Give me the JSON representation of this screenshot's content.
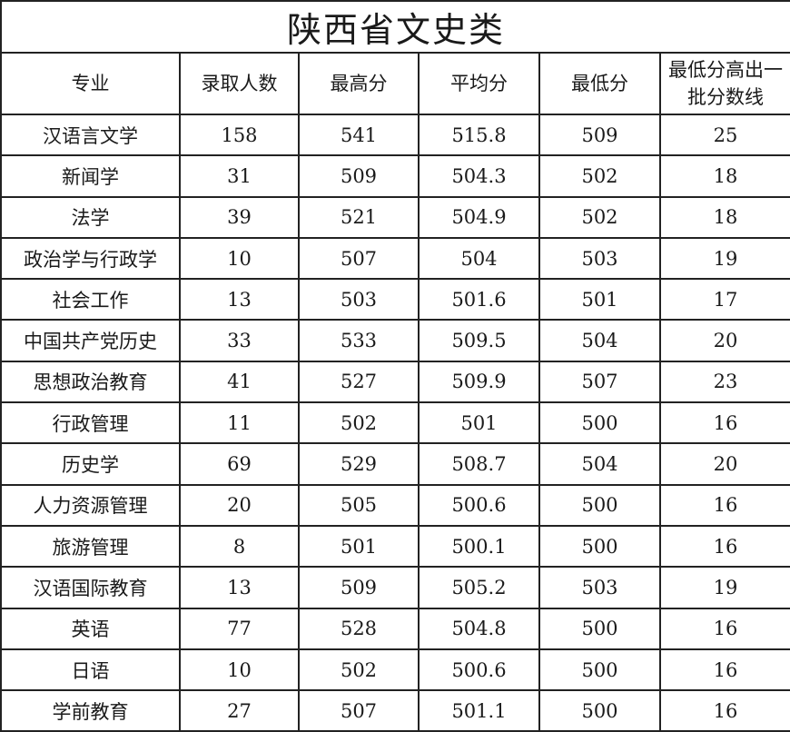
{
  "title": "陕西省文史类",
  "headers": [
    "专业",
    "录取人数",
    "最高分",
    "平均分",
    "最低分",
    "最低分高出一批分数线"
  ],
  "rows": [
    [
      "汉语言文学",
      "158",
      "541",
      "515.8",
      "509",
      "25"
    ],
    [
      "新闻学",
      "31",
      "509",
      "504.3",
      "502",
      "18"
    ],
    [
      "法学",
      "39",
      "521",
      "504.9",
      "502",
      "18"
    ],
    [
      "政治学与行政学",
      "10",
      "507",
      "504",
      "503",
      "19"
    ],
    [
      "社会工作",
      "13",
      "503",
      "501.6",
      "501",
      "17"
    ],
    [
      "中国共产党历史",
      "33",
      "533",
      "509.5",
      "504",
      "20"
    ],
    [
      "思想政治教育",
      "41",
      "527",
      "509.9",
      "507",
      "23"
    ],
    [
      "行政管理",
      "11",
      "502",
      "501",
      "500",
      "16"
    ],
    [
      "历史学",
      "69",
      "529",
      "508.7",
      "504",
      "20"
    ],
    [
      "人力资源管理",
      "20",
      "505",
      "500.6",
      "500",
      "16"
    ],
    [
      "旅游管理",
      "8",
      "501",
      "500.1",
      "500",
      "16"
    ],
    [
      "汉语国际教育",
      "13",
      "509",
      "505.2",
      "503",
      "19"
    ],
    [
      "英语",
      "77",
      "528",
      "504.8",
      "500",
      "16"
    ],
    [
      "日语",
      "10",
      "502",
      "500.6",
      "500",
      "16"
    ],
    [
      "学前教育",
      "27",
      "507",
      "501.1",
      "500",
      "16"
    ]
  ]
}
